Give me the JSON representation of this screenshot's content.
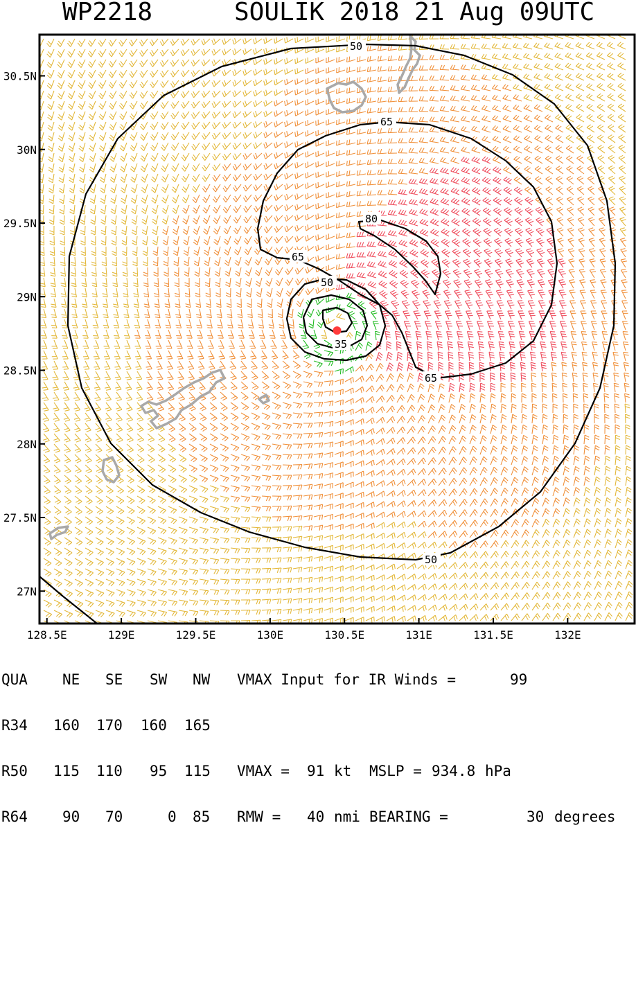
{
  "header": {
    "storm_id": "WP2218",
    "storm_title": "SOULIK 2018 21 Aug 09UTC"
  },
  "map": {
    "lon_range": [
      128.45,
      132.45
    ],
    "lat_range": [
      26.78,
      30.78
    ],
    "lon_ticks": [
      {
        "value": 128.5,
        "label": "128.5E"
      },
      {
        "value": 129.0,
        "label": "129E"
      },
      {
        "value": 129.5,
        "label": "129.5E"
      },
      {
        "value": 130.0,
        "label": "130E"
      },
      {
        "value": 130.5,
        "label": "130.5E"
      },
      {
        "value": 131.0,
        "label": "131E"
      },
      {
        "value": 131.5,
        "label": "131.5E"
      },
      {
        "value": 132.0,
        "label": "132E"
      }
    ],
    "lat_ticks": [
      {
        "value": 30.5,
        "label": "30.5N"
      },
      {
        "value": 30.0,
        "label": "30N"
      },
      {
        "value": 29.5,
        "label": "29.5N"
      },
      {
        "value": 29.0,
        "label": "29N"
      },
      {
        "value": 28.5,
        "label": "28.5N"
      },
      {
        "value": 28.0,
        "label": "28N"
      },
      {
        "value": 27.5,
        "label": "27.5N"
      },
      {
        "value": 27.0,
        "label": "27N"
      }
    ],
    "storm_center": {
      "lon": 130.45,
      "lat": 28.77
    },
    "contour_labels": [
      "50",
      "65",
      "80",
      "65",
      "50",
      "35",
      "65",
      "50"
    ],
    "colors": {
      "barb_weak": "#e3b83a",
      "barb_moderate": "#f0903a",
      "barb_strong": "#ef4c5c",
      "barb_light": "#22bb22",
      "coastline": "#a9a9a9",
      "contour": "#000000",
      "center_marker": "#ff3b3b"
    }
  },
  "table": {
    "header": [
      "QUA",
      "NE",
      "SE",
      "SW",
      "NW"
    ],
    "rows": [
      [
        "R34",
        "160",
        "170",
        "160",
        "165"
      ],
      [
        "R50",
        "115",
        "110",
        "95",
        "115"
      ],
      [
        "R64",
        "90",
        "70",
        "0",
        "85"
      ]
    ],
    "vmax_input_label": "VMAX Input for IR Winds =",
    "vmax_input_value": "99",
    "vmax_label": "VMAX =",
    "vmax_value": "91",
    "vmax_unit": "kt",
    "mslp_label": "MSLP =",
    "mslp_value": "934.8",
    "mslp_unit": "hPa",
    "rmw_label": "RMW =",
    "rmw_value": "40",
    "rmw_unit": "nmi",
    "bearing_label": "BEARING =",
    "bearing_value": "30",
    "bearing_unit": "degrees"
  }
}
